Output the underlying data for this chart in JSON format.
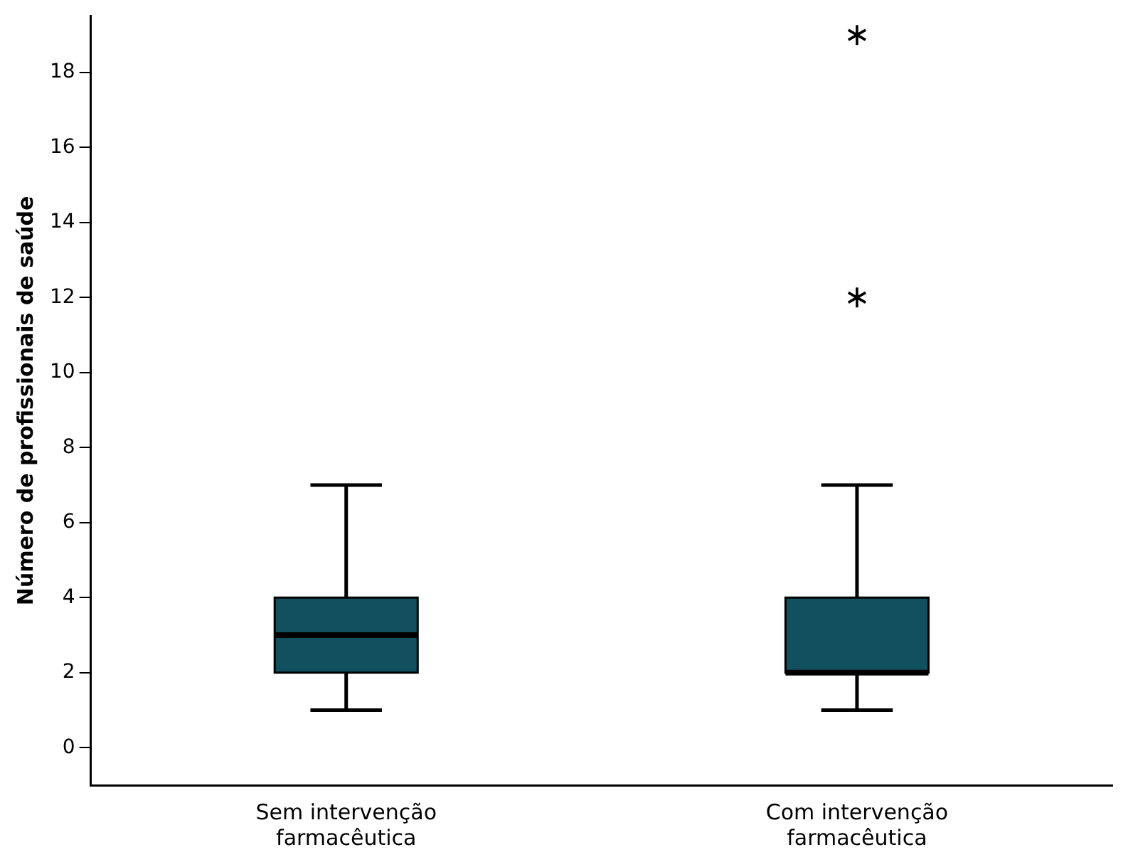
{
  "chart_data": {
    "type": "box",
    "ylabel": "Número de profissionais de saúde",
    "categories": [
      "Sem intervenção farmacêutica",
      "Com intervenção farmacêutica"
    ],
    "boxes": [
      {
        "low": 1,
        "q1": 2,
        "median": 3,
        "q3": 4,
        "high": 7
      },
      {
        "low": 1,
        "q1": 2,
        "median": 2,
        "q3": 4,
        "high": 7,
        "outliers": [
          12,
          19
        ]
      }
    ],
    "color": "#11505f",
    "marker": "star",
    "ylim": [
      -1,
      19.5
    ],
    "yticks": [
      0,
      2,
      4,
      6,
      8,
      10,
      12,
      14,
      16,
      18
    ],
    "grid": false,
    "legend": false
  }
}
